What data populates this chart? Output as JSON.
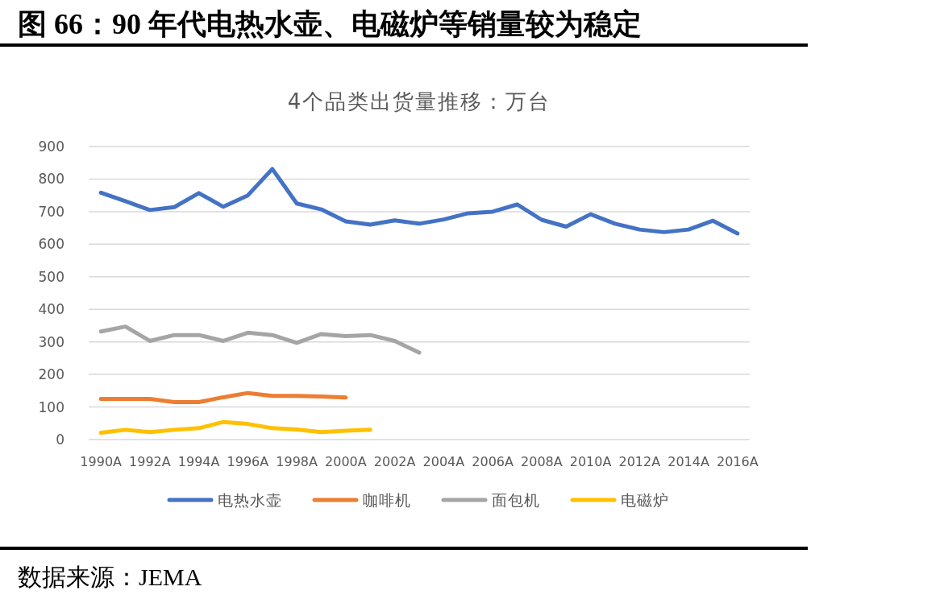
{
  "chart_data": {
    "type": "line",
    "title": "图 66：90 年代电热水壶、电磁炉等销量较为稳定",
    "subtitle": "4个品类出货量推移：万台",
    "categories": [
      "1990A",
      null,
      "1992A",
      null,
      "1994A",
      null,
      "1996A",
      null,
      "1998A",
      null,
      "2000A",
      null,
      "2002A",
      null,
      "2004A",
      null,
      "2006A",
      null,
      "2008A",
      null,
      "2010A",
      null,
      "2012A",
      null,
      "2014A",
      null,
      "2016A"
    ],
    "series": [
      {
        "name": "电热水壶",
        "color": "#4472c4",
        "values": [
          758,
          732,
          705,
          714,
          757,
          715,
          750,
          831,
          725,
          707,
          670,
          660,
          673,
          663,
          676,
          695,
          700,
          722,
          675,
          654,
          692,
          663,
          645,
          637,
          645,
          672,
          633
        ]
      },
      {
        "name": "咖啡机",
        "color": "#ed7d31",
        "values": [
          125,
          125,
          125,
          115,
          115,
          130,
          143,
          134,
          134,
          132,
          129,
          null,
          null,
          null,
          null,
          null,
          null,
          null,
          null,
          null,
          null,
          null,
          null,
          null,
          null,
          null,
          null
        ]
      },
      {
        "name": "面包机",
        "color": "#a5a5a5",
        "values": [
          332,
          347,
          303,
          321,
          321,
          303,
          328,
          321,
          297,
          324,
          318,
          321,
          303,
          267,
          null,
          null,
          null,
          null,
          null,
          null,
          null,
          null,
          null,
          null,
          null,
          null,
          null
        ]
      },
      {
        "name": "电磁炉",
        "color": "#ffc000",
        "values": [
          21,
          30,
          23,
          30,
          35,
          54,
          48,
          35,
          31,
          23,
          27,
          30,
          null,
          null,
          null,
          null,
          null,
          null,
          null,
          null,
          null,
          null,
          null,
          null,
          null,
          null,
          null
        ]
      }
    ],
    "ylim": [
      0,
      900
    ],
    "yticks": [
      0,
      100,
      200,
      300,
      400,
      500,
      600,
      700,
      800,
      900
    ],
    "grid": "y",
    "legend": "bottom",
    "annotations": [
      "数据来源：JEMA"
    ]
  }
}
